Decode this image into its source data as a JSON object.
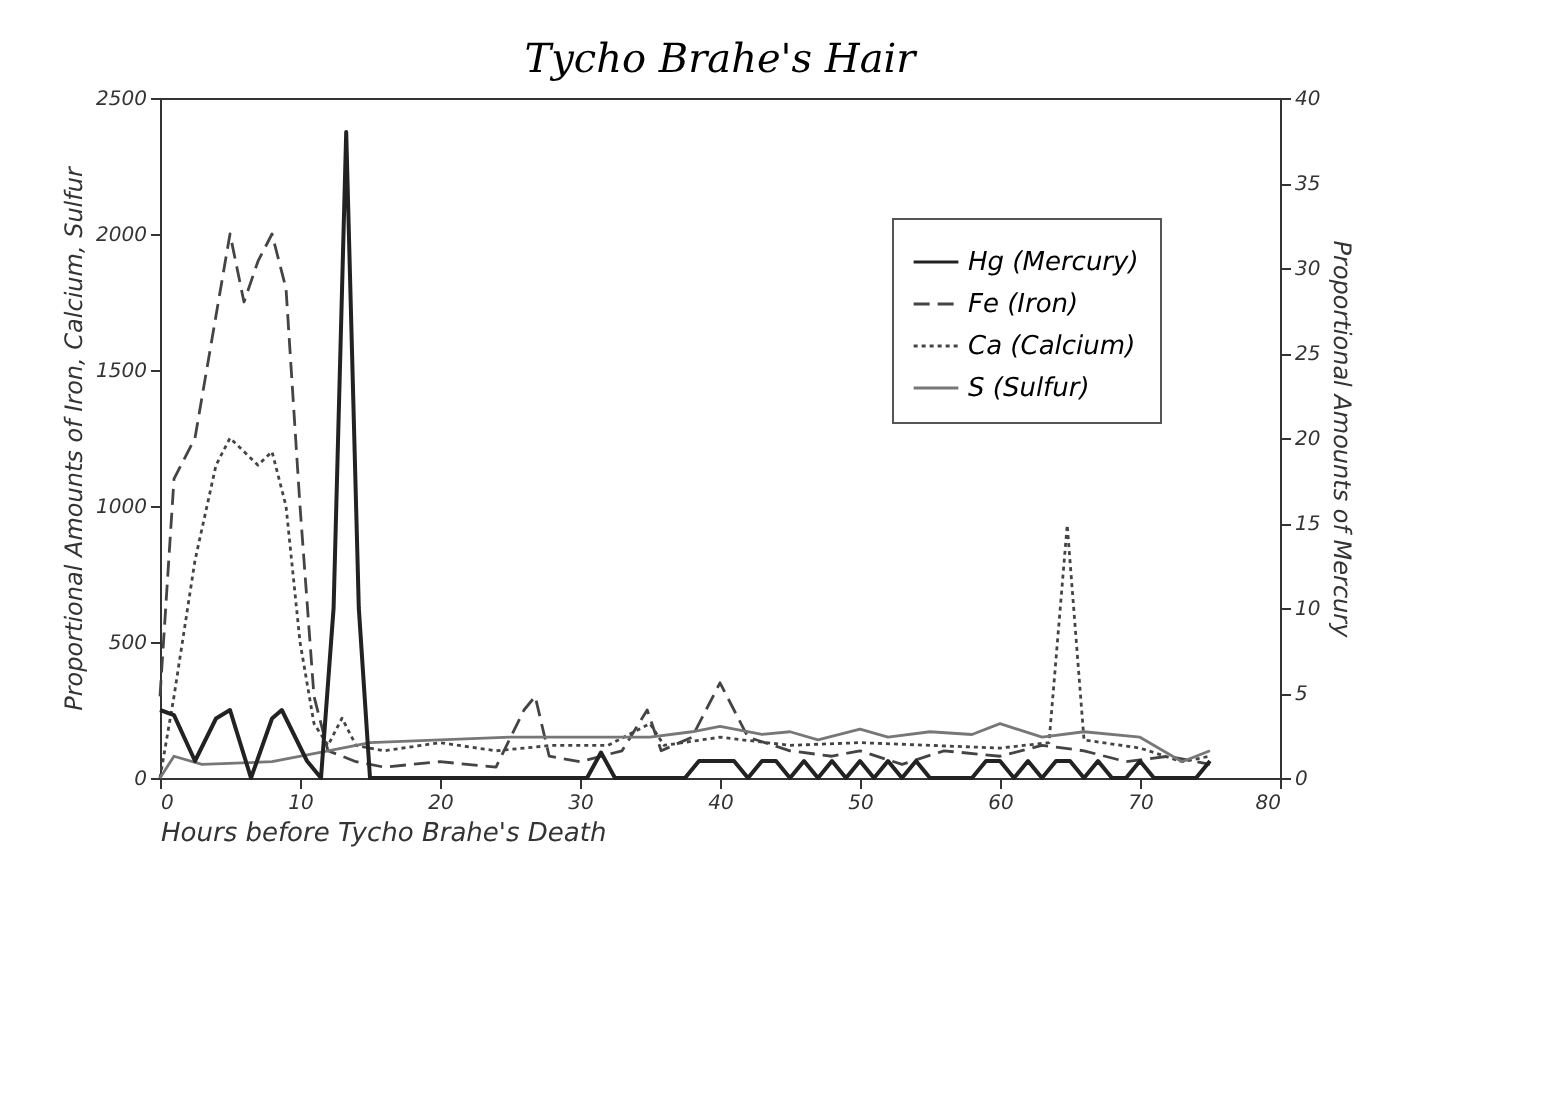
{
  "chart_data": {
    "type": "line",
    "title": "Tycho Brahe's Hair",
    "xlabel": "Hours before Tycho Brahe's Death",
    "ylabel": "Proportional Amounts of Iron, Calcium, Sulfur",
    "y2label": "Proportional Amounts of Mercury",
    "xlim": [
      0,
      80
    ],
    "xticks": [
      0,
      10,
      20,
      30,
      40,
      50,
      60,
      70,
      80
    ],
    "ylim": [
      0,
      2500
    ],
    "yticks": [
      0,
      500,
      1000,
      1500,
      2000,
      2500
    ],
    "y2lim": [
      0,
      40
    ],
    "y2ticks": [
      0,
      5,
      10,
      15,
      20,
      25,
      30,
      35,
      40
    ],
    "legend": "top right",
    "grid": false,
    "series": [
      {
        "name": "Hg (Mercury)",
        "color": "#222222",
        "line_style": "solid",
        "axis": "y2",
        "x": [
          0,
          1,
          2.5,
          4,
          5,
          6.5,
          8,
          8.7,
          10.5,
          11.5,
          12.4,
          13.3,
          14.2,
          15,
          30.5,
          31.5,
          32.5,
          37.5,
          38.5,
          41,
          42,
          43,
          44,
          45,
          46,
          47,
          48,
          49,
          50,
          51,
          52,
          53,
          54,
          55,
          58,
          59,
          60,
          61,
          62,
          63,
          64,
          65,
          66,
          67,
          68,
          69,
          70,
          71,
          73,
          74,
          75
        ],
        "values": [
          4,
          3.7,
          1,
          3.5,
          4,
          0,
          3.5,
          4,
          1,
          0,
          10,
          38,
          10,
          0,
          0,
          1.5,
          0,
          0,
          1,
          1,
          0,
          1,
          1,
          0,
          1,
          0,
          1,
          0,
          1,
          0,
          1,
          0,
          1,
          0,
          0,
          1,
          1,
          0,
          1,
          0,
          1,
          1,
          0,
          1,
          0,
          0,
          1,
          0,
          0,
          0,
          1
        ]
      },
      {
        "name": "Fe (Iron)",
        "color": "#444444",
        "line_style": "dashed",
        "x": [
          0,
          1,
          2.5,
          4,
          5,
          6,
          7,
          8,
          9,
          10,
          11,
          12,
          14,
          16,
          20,
          24,
          26,
          26.8,
          27.8,
          30,
          33,
          34.8,
          35.8,
          38,
          40,
          42,
          45,
          48,
          50,
          53,
          56,
          60,
          63,
          66,
          69,
          72,
          75
        ],
        "values": [
          300,
          1100,
          1250,
          1700,
          2000,
          1750,
          1900,
          2000,
          1800,
          1000,
          300,
          100,
          60,
          40,
          60,
          40,
          250,
          300,
          80,
          60,
          100,
          250,
          100,
          150,
          350,
          150,
          100,
          80,
          100,
          50,
          100,
          80,
          120,
          100,
          60,
          80,
          50
        ]
      },
      {
        "name": "Ca (Calcium)",
        "color": "#444444",
        "line_style": "dotted",
        "x": [
          0,
          1,
          2.5,
          4,
          5,
          6,
          7,
          8,
          9,
          10,
          11,
          12,
          13,
          14,
          16,
          20,
          24,
          28,
          32,
          35,
          36,
          40,
          45,
          50,
          55,
          60,
          63.5,
          64.8,
          66,
          70,
          73,
          75
        ],
        "values": [
          0,
          300,
          800,
          1150,
          1250,
          1200,
          1150,
          1200,
          1000,
          500,
          200,
          120,
          220,
          120,
          100,
          130,
          100,
          120,
          120,
          200,
          120,
          150,
          120,
          130,
          120,
          110,
          130,
          930,
          140,
          110,
          60,
          80
        ]
      },
      {
        "name": "S (Sulfur)",
        "color": "#777777",
        "line_style": "solid",
        "x": [
          0,
          1,
          3,
          8,
          12,
          15,
          20,
          25,
          30,
          35,
          38,
          40,
          43,
          45,
          47,
          50,
          52,
          55,
          58,
          60,
          63,
          66,
          70,
          73,
          75
        ],
        "values": [
          0,
          80,
          50,
          60,
          100,
          130,
          140,
          150,
          150,
          150,
          170,
          190,
          160,
          170,
          140,
          180,
          150,
          170,
          160,
          200,
          150,
          170,
          150,
          60,
          100
        ]
      }
    ]
  }
}
